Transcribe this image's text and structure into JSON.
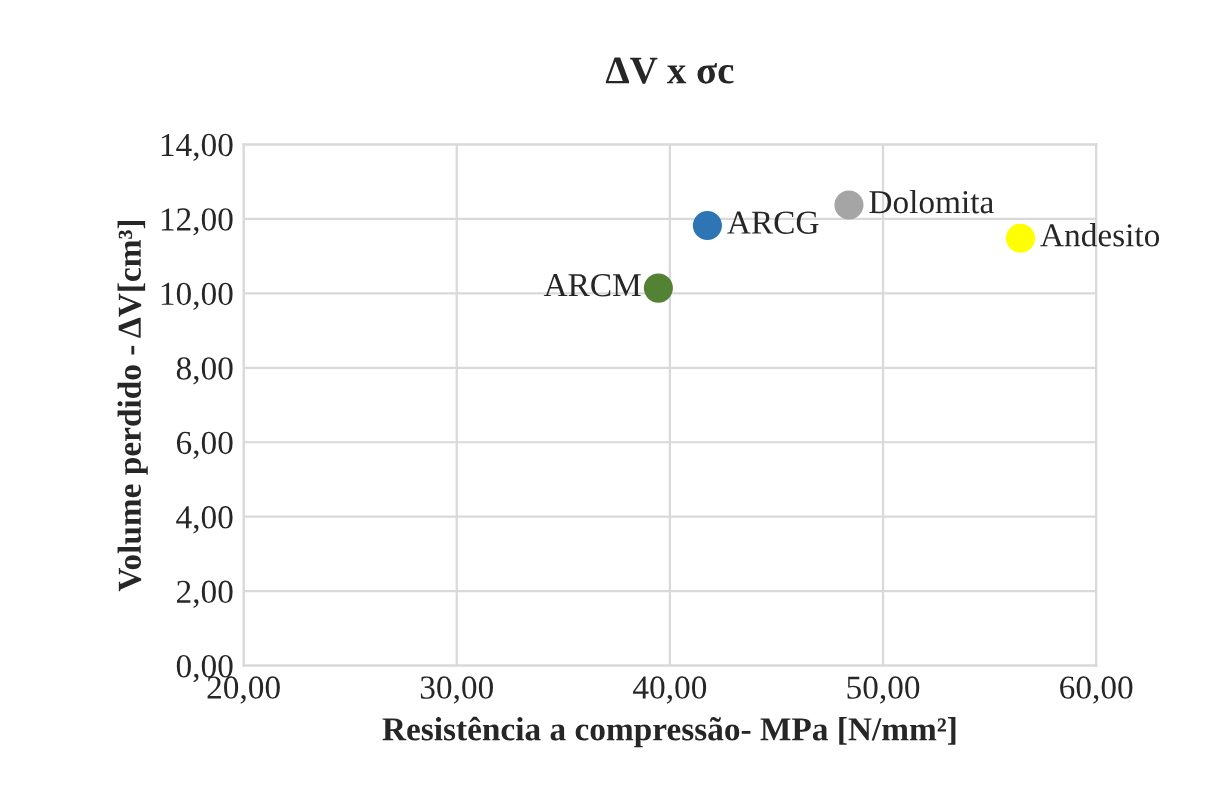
{
  "chart_data": {
    "type": "scatter",
    "title": "ΔV x σc",
    "xlabel": "Resistência a compressão- MPa [N/mm²]",
    "ylabel": "Volume perdido - ΔV[cm³]",
    "series": [
      {
        "name": "ARCM",
        "color": "#548235",
        "x": [
          39.46
        ],
        "values": [
          10.14
        ]
      },
      {
        "name": "ARCG",
        "color": "#2e75b6",
        "x": [
          41.76
        ],
        "values": [
          11.82
        ]
      },
      {
        "name": "Dolomita",
        "color": "#a5a5a5",
        "x": [
          48.4
        ],
        "values": [
          12.37
        ]
      },
      {
        "name": "Andesito",
        "color": "#ffff00",
        "x": [
          56.45
        ],
        "values": [
          11.48
        ]
      }
    ],
    "xlim": [
      20,
      60
    ],
    "ylim": [
      0,
      14
    ],
    "xticks": [
      {
        "value": 20,
        "label": "20,00"
      },
      {
        "value": 30,
        "label": "30,00"
      },
      {
        "value": 40,
        "label": "40,00"
      },
      {
        "value": 50,
        "label": "50,00"
      },
      {
        "value": 60,
        "label": "60,00"
      }
    ],
    "yticks": [
      {
        "value": 0,
        "label": "0,00"
      },
      {
        "value": 2,
        "label": "2,00"
      },
      {
        "value": 4,
        "label": "4,00"
      },
      {
        "value": 6,
        "label": "6,00"
      },
      {
        "value": 8,
        "label": "8,00"
      },
      {
        "value": 10,
        "label": "10,00"
      },
      {
        "value": 12,
        "label": "12,00"
      },
      {
        "value": 14,
        "label": "14,00"
      }
    ],
    "grid": true,
    "marker": "circle",
    "legend": false
  }
}
